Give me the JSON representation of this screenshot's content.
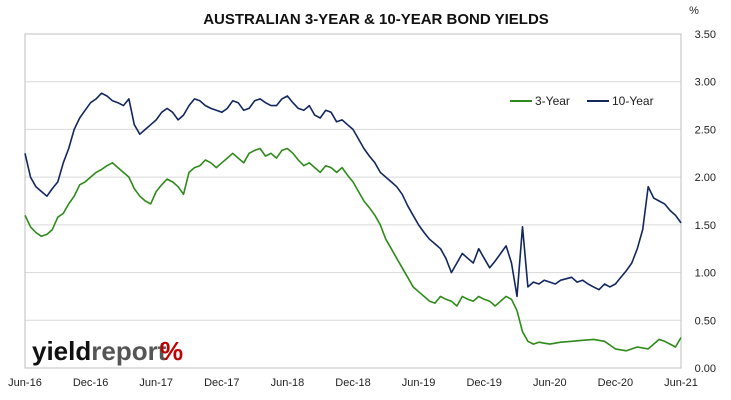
{
  "chart_data": {
    "type": "line",
    "title": "AUSTRALIAN 3-YEAR & 10-YEAR BOND YIELDS",
    "ylabel": "%",
    "ylim": [
      0,
      3.5
    ],
    "yticks": [
      "0.00",
      "0.50",
      "1.00",
      "1.50",
      "2.00",
      "2.50",
      "3.00",
      "3.50"
    ],
    "xlim": [
      0,
      60
    ],
    "xtick_labels": [
      "Jun-16",
      "Dec-16",
      "Jun-17",
      "Dec-17",
      "Jun-18",
      "Dec-18",
      "Jun-19",
      "Dec-19",
      "Jun-20",
      "Dec-20",
      "Jun-21"
    ],
    "xtick_positions": [
      0,
      6,
      12,
      18,
      24,
      30,
      36,
      42,
      48,
      54,
      60
    ],
    "grid": true,
    "legend_position": "top-right",
    "series": [
      {
        "name": "3-Year",
        "color": "#2e8b1a",
        "points": [
          [
            0,
            1.6
          ],
          [
            0.5,
            1.48
          ],
          [
            1,
            1.42
          ],
          [
            1.5,
            1.38
          ],
          [
            2,
            1.4
          ],
          [
            2.5,
            1.45
          ],
          [
            3,
            1.58
          ],
          [
            3.5,
            1.62
          ],
          [
            4,
            1.72
          ],
          [
            4.5,
            1.8
          ],
          [
            5,
            1.92
          ],
          [
            5.5,
            1.95
          ],
          [
            6,
            2.0
          ],
          [
            6.5,
            2.05
          ],
          [
            7,
            2.08
          ],
          [
            7.5,
            2.12
          ],
          [
            8,
            2.15
          ],
          [
            8.5,
            2.1
          ],
          [
            9,
            2.05
          ],
          [
            9.5,
            2.0
          ],
          [
            10,
            1.88
          ],
          [
            10.5,
            1.8
          ],
          [
            11,
            1.75
          ],
          [
            11.5,
            1.72
          ],
          [
            12,
            1.85
          ],
          [
            12.5,
            1.92
          ],
          [
            13,
            1.98
          ],
          [
            13.5,
            1.95
          ],
          [
            14,
            1.9
          ],
          [
            14.5,
            1.82
          ],
          [
            15,
            2.05
          ],
          [
            15.5,
            2.1
          ],
          [
            16,
            2.12
          ],
          [
            16.5,
            2.18
          ],
          [
            17,
            2.15
          ],
          [
            17.5,
            2.1
          ],
          [
            18,
            2.15
          ],
          [
            18.5,
            2.2
          ],
          [
            19,
            2.25
          ],
          [
            19.5,
            2.2
          ],
          [
            20,
            2.15
          ],
          [
            20.5,
            2.25
          ],
          [
            21,
            2.28
          ],
          [
            21.5,
            2.3
          ],
          [
            22,
            2.22
          ],
          [
            22.5,
            2.25
          ],
          [
            23,
            2.2
          ],
          [
            23.5,
            2.28
          ],
          [
            24,
            2.3
          ],
          [
            24.5,
            2.25
          ],
          [
            25,
            2.18
          ],
          [
            25.5,
            2.12
          ],
          [
            26,
            2.15
          ],
          [
            26.5,
            2.1
          ],
          [
            27,
            2.05
          ],
          [
            27.5,
            2.12
          ],
          [
            28,
            2.1
          ],
          [
            28.5,
            2.05
          ],
          [
            29,
            2.1
          ],
          [
            29.5,
            2.02
          ],
          [
            30,
            1.95
          ],
          [
            30.5,
            1.85
          ],
          [
            31,
            1.75
          ],
          [
            31.5,
            1.68
          ],
          [
            32,
            1.6
          ],
          [
            32.5,
            1.5
          ],
          [
            33,
            1.35
          ],
          [
            33.5,
            1.25
          ],
          [
            34,
            1.15
          ],
          [
            34.5,
            1.05
          ],
          [
            35,
            0.95
          ],
          [
            35.5,
            0.85
          ],
          [
            36,
            0.8
          ],
          [
            36.5,
            0.75
          ],
          [
            37,
            0.7
          ],
          [
            37.5,
            0.68
          ],
          [
            38,
            0.75
          ],
          [
            38.5,
            0.72
          ],
          [
            39,
            0.7
          ],
          [
            39.5,
            0.65
          ],
          [
            40,
            0.75
          ],
          [
            40.5,
            0.72
          ],
          [
            41,
            0.7
          ],
          [
            41.5,
            0.75
          ],
          [
            42,
            0.72
          ],
          [
            42.5,
            0.7
          ],
          [
            43,
            0.65
          ],
          [
            43.5,
            0.7
          ],
          [
            44,
            0.75
          ],
          [
            44.5,
            0.72
          ],
          [
            45,
            0.6
          ],
          [
            45.5,
            0.38
          ],
          [
            46,
            0.28
          ],
          [
            46.5,
            0.25
          ],
          [
            47,
            0.27
          ],
          [
            47.5,
            0.26
          ],
          [
            48,
            0.25
          ],
          [
            49,
            0.27
          ],
          [
            50,
            0.28
          ],
          [
            51,
            0.29
          ],
          [
            52,
            0.3
          ],
          [
            53,
            0.28
          ],
          [
            54,
            0.2
          ],
          [
            55,
            0.18
          ],
          [
            55.5,
            0.2
          ],
          [
            56,
            0.22
          ],
          [
            57,
            0.2
          ],
          [
            57.5,
            0.25
          ],
          [
            58,
            0.3
          ],
          [
            58.5,
            0.28
          ],
          [
            59,
            0.25
          ],
          [
            59.5,
            0.22
          ],
          [
            60,
            0.32
          ]
        ]
      },
      {
        "name": "10-Year",
        "color": "#12275e",
        "points": [
          [
            0,
            2.25
          ],
          [
            0.5,
            2.0
          ],
          [
            1,
            1.9
          ],
          [
            1.5,
            1.85
          ],
          [
            2,
            1.8
          ],
          [
            2.5,
            1.88
          ],
          [
            3,
            1.95
          ],
          [
            3.5,
            2.15
          ],
          [
            4,
            2.3
          ],
          [
            4.5,
            2.5
          ],
          [
            5,
            2.62
          ],
          [
            5.5,
            2.7
          ],
          [
            6,
            2.78
          ],
          [
            6.5,
            2.82
          ],
          [
            7,
            2.88
          ],
          [
            7.5,
            2.85
          ],
          [
            8,
            2.8
          ],
          [
            8.5,
            2.78
          ],
          [
            9,
            2.75
          ],
          [
            9.5,
            2.82
          ],
          [
            10,
            2.55
          ],
          [
            10.5,
            2.45
          ],
          [
            11,
            2.5
          ],
          [
            11.5,
            2.55
          ],
          [
            12,
            2.6
          ],
          [
            12.5,
            2.68
          ],
          [
            13,
            2.72
          ],
          [
            13.5,
            2.68
          ],
          [
            14,
            2.6
          ],
          [
            14.5,
            2.65
          ],
          [
            15,
            2.75
          ],
          [
            15.5,
            2.82
          ],
          [
            16,
            2.8
          ],
          [
            16.5,
            2.75
          ],
          [
            17,
            2.72
          ],
          [
            17.5,
            2.7
          ],
          [
            18,
            2.68
          ],
          [
            18.5,
            2.72
          ],
          [
            19,
            2.8
          ],
          [
            19.5,
            2.78
          ],
          [
            20,
            2.7
          ],
          [
            20.5,
            2.72
          ],
          [
            21,
            2.8
          ],
          [
            21.5,
            2.82
          ],
          [
            22,
            2.78
          ],
          [
            22.5,
            2.75
          ],
          [
            23,
            2.75
          ],
          [
            23.5,
            2.82
          ],
          [
            24,
            2.85
          ],
          [
            24.5,
            2.78
          ],
          [
            25,
            2.72
          ],
          [
            25.5,
            2.7
          ],
          [
            26,
            2.75
          ],
          [
            26.5,
            2.65
          ],
          [
            27,
            2.62
          ],
          [
            27.5,
            2.7
          ],
          [
            28,
            2.68
          ],
          [
            28.5,
            2.58
          ],
          [
            29,
            2.6
          ],
          [
            29.5,
            2.55
          ],
          [
            30,
            2.5
          ],
          [
            30.5,
            2.4
          ],
          [
            31,
            2.3
          ],
          [
            31.5,
            2.22
          ],
          [
            32,
            2.15
          ],
          [
            32.5,
            2.05
          ],
          [
            33,
            2.0
          ],
          [
            33.5,
            1.95
          ],
          [
            34,
            1.9
          ],
          [
            34.5,
            1.82
          ],
          [
            35,
            1.7
          ],
          [
            35.5,
            1.6
          ],
          [
            36,
            1.5
          ],
          [
            36.5,
            1.42
          ],
          [
            37,
            1.35
          ],
          [
            37.5,
            1.3
          ],
          [
            38,
            1.25
          ],
          [
            38.5,
            1.15
          ],
          [
            39,
            1.0
          ],
          [
            39.5,
            1.1
          ],
          [
            40,
            1.2
          ],
          [
            40.5,
            1.15
          ],
          [
            41,
            1.1
          ],
          [
            41.5,
            1.25
          ],
          [
            42,
            1.15
          ],
          [
            42.5,
            1.05
          ],
          [
            43,
            1.12
          ],
          [
            43.5,
            1.2
          ],
          [
            44,
            1.28
          ],
          [
            44.5,
            1.1
          ],
          [
            45,
            0.75
          ],
          [
            45.5,
            1.48
          ],
          [
            46,
            0.85
          ],
          [
            46.5,
            0.9
          ],
          [
            47,
            0.88
          ],
          [
            47.5,
            0.92
          ],
          [
            48,
            0.9
          ],
          [
            48.5,
            0.88
          ],
          [
            49,
            0.92
          ],
          [
            50,
            0.95
          ],
          [
            50.5,
            0.9
          ],
          [
            51,
            0.92
          ],
          [
            51.5,
            0.88
          ],
          [
            52,
            0.85
          ],
          [
            52.5,
            0.82
          ],
          [
            53,
            0.88
          ],
          [
            53.5,
            0.85
          ],
          [
            54,
            0.88
          ],
          [
            54.5,
            0.95
          ],
          [
            55,
            1.02
          ],
          [
            55.5,
            1.1
          ],
          [
            56,
            1.25
          ],
          [
            56.5,
            1.45
          ],
          [
            57,
            1.9
          ],
          [
            57.5,
            1.78
          ],
          [
            58,
            1.75
          ],
          [
            58.5,
            1.72
          ],
          [
            59,
            1.65
          ],
          [
            59.5,
            1.6
          ],
          [
            60,
            1.52
          ]
        ]
      }
    ]
  },
  "logo": {
    "yield_text": "yield",
    "report_text": "report",
    "percent_text": "%",
    "yield_color": "#111111",
    "report_color": "#555555",
    "percent_colors": [
      "#2e8b1a",
      "#c00000"
    ]
  }
}
